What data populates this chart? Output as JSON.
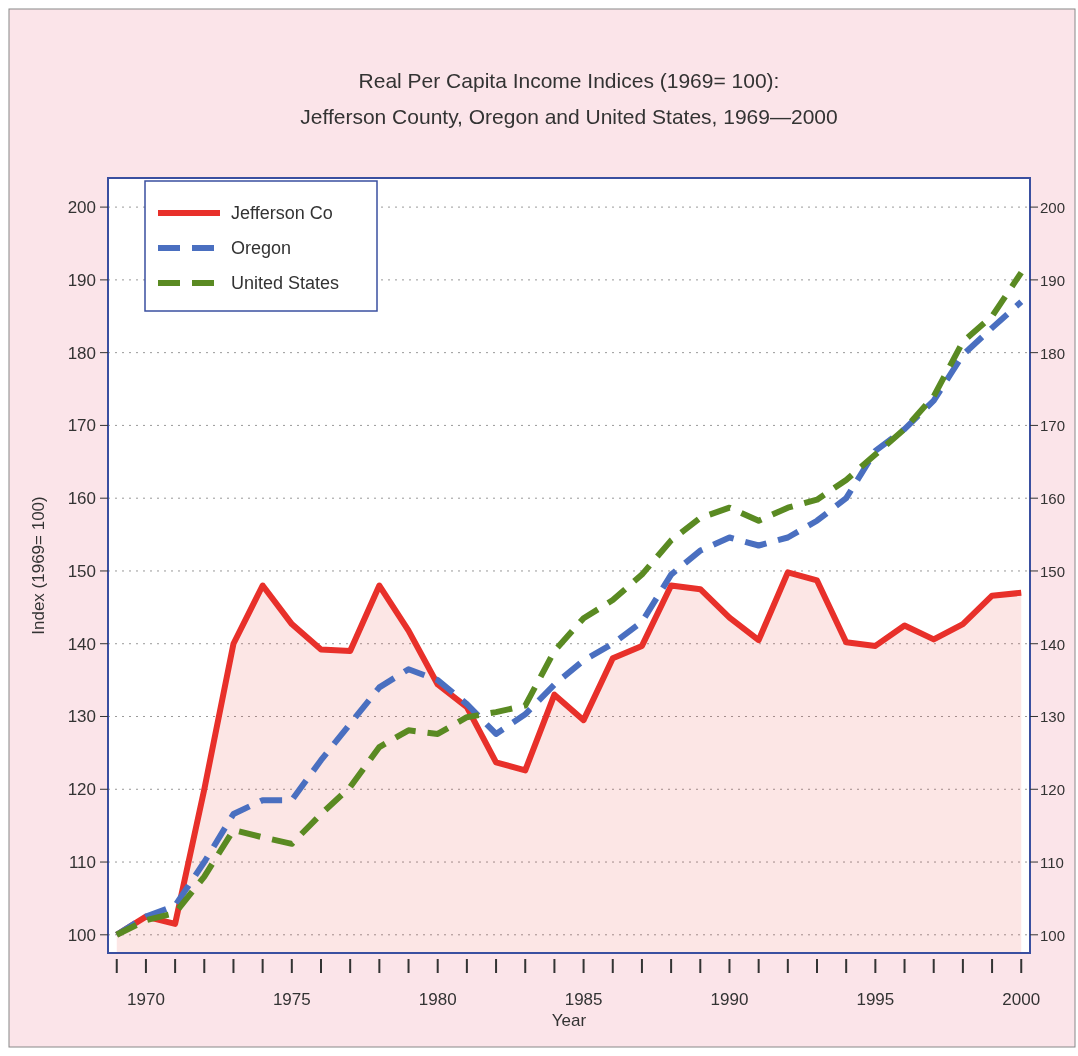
{
  "chart_data": {
    "type": "line",
    "title": "Real Per Capita Income Indices (1969= 100):",
    "subtitle": "Jefferson County, Oregon and United States, 1969—2000",
    "xlabel": "Year",
    "ylabel": "Index (1969= 100)",
    "x": [
      1969,
      1970,
      1971,
      1972,
      1973,
      1974,
      1975,
      1976,
      1977,
      1978,
      1979,
      1980,
      1981,
      1982,
      1983,
      1984,
      1985,
      1986,
      1987,
      1988,
      1989,
      1990,
      1991,
      1992,
      1993,
      1994,
      1995,
      1996,
      1997,
      1998,
      1999,
      2000
    ],
    "series": [
      {
        "name": "Jefferson Co",
        "type": "area",
        "color": "#e8302a",
        "line_style": "solid",
        "values": [
          100,
          102.5,
          101.5,
          120,
          140,
          148,
          142.7,
          139.2,
          139,
          148,
          141.8,
          134.4,
          131.3,
          123.7,
          122.6,
          133,
          129.5,
          138,
          139.7,
          148,
          147.5,
          143.6,
          140.5,
          149.8,
          148.7,
          140.2,
          139.7,
          142.5,
          140.6,
          142.7,
          146.6,
          147
        ]
      },
      {
        "name": "Oregon",
        "color": "#4a6fc0",
        "line_style": "dashed",
        "values": [
          100,
          102.5,
          104,
          110,
          116.6,
          118.5,
          118.5,
          124,
          129,
          134,
          136.5,
          135,
          131.7,
          127.6,
          130.3,
          134.4,
          137.7,
          140,
          143,
          149.5,
          152.8,
          154.6,
          153.5,
          154.6,
          156.9,
          160,
          166.5,
          169.5,
          173.4,
          179.7,
          183.4,
          187
        ]
      },
      {
        "name": "United States",
        "color": "#5a8a22",
        "line_style": "dashed",
        "values": [
          100,
          102,
          103,
          108,
          114.4,
          113.4,
          112.5,
          116.6,
          120.3,
          125.8,
          128.1,
          127.6,
          129.9,
          130.6,
          131.5,
          139,
          143.5,
          146,
          149.5,
          154.2,
          157.3,
          158.7,
          156.9,
          158.7,
          159.8,
          162.5,
          166,
          169.5,
          174,
          181.5,
          185,
          191
        ]
      }
    ],
    "xlim": [
      1968.7,
      2000.3
    ],
    "xticks": [
      {
        "value": 1969,
        "label": null
      },
      1970,
      {
        "value": 1971,
        "label": null
      },
      {
        "value": 1972,
        "label": null
      },
      {
        "value": 1973,
        "label": null
      },
      {
        "value": 1974,
        "label": null
      },
      1975,
      {
        "value": 1976,
        "label": null
      },
      {
        "value": 1977,
        "label": null
      },
      {
        "value": 1978,
        "label": null
      },
      {
        "value": 1979,
        "label": null
      },
      1980,
      {
        "value": 1981,
        "label": null
      },
      {
        "value": 1982,
        "label": null
      },
      {
        "value": 1983,
        "label": null
      },
      {
        "value": 1984,
        "label": null
      },
      1985,
      {
        "value": 1986,
        "label": null
      },
      {
        "value": 1987,
        "label": null
      },
      {
        "value": 1988,
        "label": null
      },
      {
        "value": 1989,
        "label": null
      },
      1990,
      {
        "value": 1991,
        "label": null
      },
      {
        "value": 1992,
        "label": null
      },
      {
        "value": 1993,
        "label": null
      },
      {
        "value": 1994,
        "label": null
      },
      1995,
      {
        "value": 1996,
        "label": null
      },
      {
        "value": 1997,
        "label": null
      },
      {
        "value": 1998,
        "label": null
      },
      {
        "value": 1999,
        "label": null
      },
      2000
    ],
    "ylim": [
      97.5,
      204
    ],
    "yticks": [
      100,
      110,
      120,
      130,
      140,
      150,
      160,
      170,
      180,
      190,
      200
    ],
    "y2lim": [
      97.5,
      204
    ],
    "y2ticks": [
      100,
      110,
      120,
      130,
      140,
      150,
      160,
      170,
      180,
      190,
      200
    ],
    "grid": "y",
    "legend": "top left",
    "marker": "none"
  }
}
